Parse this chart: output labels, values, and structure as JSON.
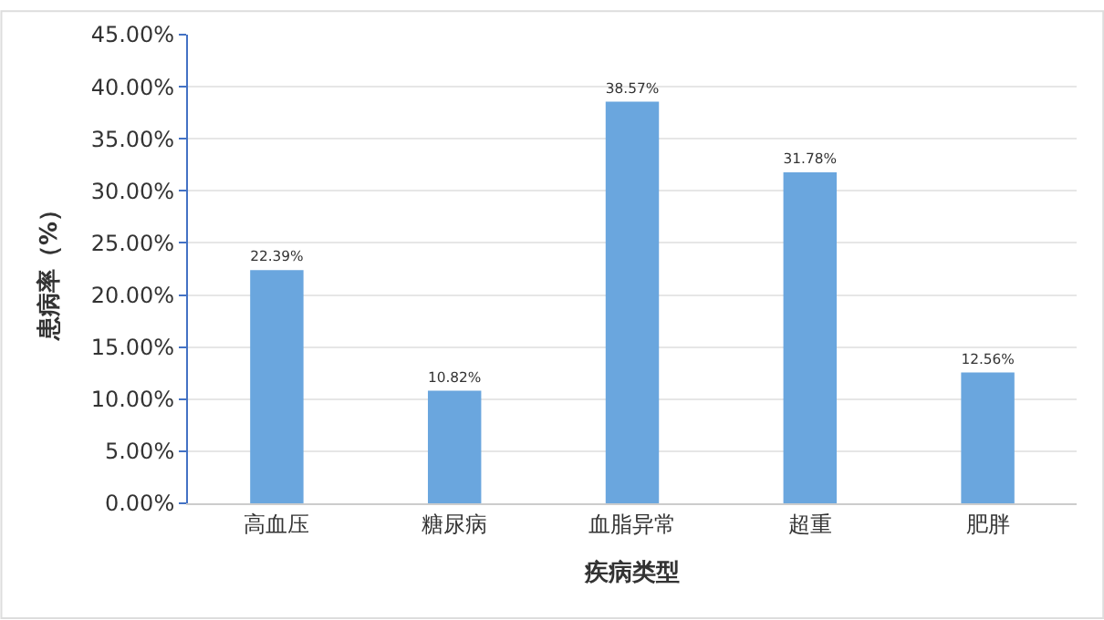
{
  "chart_data": {
    "type": "bar",
    "xlabel": "疾病类型",
    "ylabel": "患病率（%）",
    "categories": [
      "高血压",
      "糖尿病",
      "血脂异常",
      "超重",
      "肥胖"
    ],
    "values": [
      22.39,
      10.82,
      38.57,
      31.78,
      12.56
    ],
    "value_labels": [
      "22.39%",
      "10.82%",
      "38.57%",
      "31.78%",
      "12.56%"
    ],
    "color": "#6aa6de",
    "ylim": [
      0,
      45
    ],
    "yticks": [
      {
        "value": 0,
        "label": "0.00%"
      },
      {
        "value": 5,
        "label": "5.00%"
      },
      {
        "value": 10,
        "label": "10.00%"
      },
      {
        "value": 15,
        "label": "15.00%"
      },
      {
        "value": 20,
        "label": "20.00%"
      },
      {
        "value": 25,
        "label": "25.00%"
      },
      {
        "value": 30,
        "label": "30.00%"
      },
      {
        "value": 35,
        "label": "35.00%"
      },
      {
        "value": 40,
        "label": "40.00%"
      },
      {
        "value": 45,
        "label": "45.00%"
      }
    ],
    "grid": "y",
    "legend": false
  }
}
